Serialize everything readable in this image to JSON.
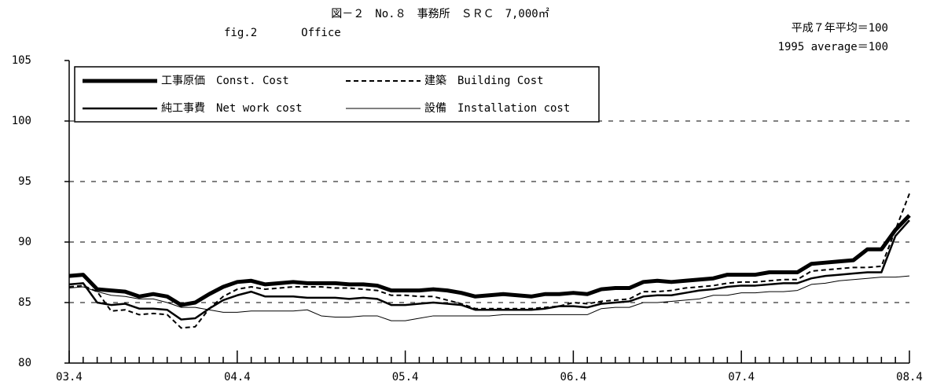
{
  "chart_data": {
    "type": "line",
    "title": "図－２　No.８　事務所　ＳＲＣ　7,000㎡",
    "subtitle": "fig.2　　　　Office",
    "annotations": [
      "平成７年平均＝100",
      "1995 average＝100"
    ],
    "categories": [
      "03.4",
      null,
      null,
      null,
      null,
      null,
      null,
      null,
      null,
      null,
      null,
      null,
      "04.4",
      null,
      null,
      null,
      null,
      null,
      null,
      null,
      null,
      null,
      null,
      null,
      "05.4",
      null,
      null,
      null,
      null,
      null,
      null,
      null,
      null,
      null,
      null,
      null,
      "06.4",
      null,
      null,
      null,
      null,
      null,
      null,
      null,
      null,
      null,
      null,
      null,
      "07.4",
      null,
      null,
      null,
      null,
      null,
      null,
      null,
      null,
      null,
      null,
      null,
      "08.4"
    ],
    "ylim": [
      80,
      105
    ],
    "yticks": [
      80,
      85,
      90,
      95,
      100,
      105
    ],
    "grid": true,
    "series": [
      {
        "name": "工事原価　Const. Cost",
        "color": "#000000",
        "line_width": 5,
        "dashed": false,
        "values": [
          87.2,
          87.3,
          86.1,
          86.0,
          85.9,
          85.5,
          85.7,
          85.5,
          84.8,
          85.0,
          85.7,
          86.3,
          86.7,
          86.8,
          86.5,
          86.6,
          86.7,
          86.6,
          86.6,
          86.6,
          86.5,
          86.5,
          86.4,
          86.0,
          86.0,
          86.0,
          86.1,
          86.0,
          85.8,
          85.5,
          85.6,
          85.7,
          85.6,
          85.5,
          85.7,
          85.7,
          85.8,
          85.7,
          86.1,
          86.2,
          86.2,
          86.7,
          86.8,
          86.7,
          86.8,
          86.9,
          87.0,
          87.3,
          87.3,
          87.3,
          87.5,
          87.5,
          87.5,
          88.2,
          88.3,
          88.4,
          88.5,
          89.4,
          89.4,
          91.0,
          92.2
        ]
      },
      {
        "name": "建築　Building Cost",
        "color": "#000000",
        "line_width": 2,
        "dashed": true,
        "values": [
          86.3,
          86.4,
          85.9,
          84.3,
          84.4,
          84.0,
          84.1,
          84.0,
          82.9,
          83.0,
          84.5,
          85.5,
          86.1,
          86.3,
          86.1,
          86.2,
          86.3,
          86.3,
          86.3,
          86.2,
          86.2,
          86.1,
          86.0,
          85.6,
          85.6,
          85.5,
          85.5,
          85.2,
          84.9,
          84.5,
          84.5,
          84.5,
          84.5,
          84.5,
          84.6,
          84.7,
          85.0,
          84.9,
          85.1,
          85.2,
          85.3,
          85.9,
          85.9,
          86.0,
          86.2,
          86.3,
          86.4,
          86.6,
          86.7,
          86.7,
          86.8,
          86.9,
          86.9,
          87.6,
          87.7,
          87.8,
          87.9,
          87.9,
          88.0,
          91.0,
          94.0
        ]
      },
      {
        "name": "純工事費　Net work cost",
        "color": "#000000",
        "line_width": 2.5,
        "dashed": false,
        "values": [
          86.5,
          86.6,
          85.0,
          84.8,
          84.9,
          84.5,
          84.5,
          84.4,
          83.6,
          83.7,
          84.5,
          85.2,
          85.6,
          85.9,
          85.5,
          85.5,
          85.5,
          85.4,
          85.4,
          85.4,
          85.3,
          85.4,
          85.3,
          84.8,
          84.8,
          84.9,
          85.0,
          84.9,
          84.8,
          84.4,
          84.4,
          84.4,
          84.4,
          84.4,
          84.5,
          84.7,
          84.7,
          84.6,
          84.9,
          85.0,
          85.1,
          85.5,
          85.6,
          85.6,
          85.8,
          86.0,
          86.1,
          86.3,
          86.4,
          86.4,
          86.5,
          86.6,
          86.6,
          87.0,
          87.2,
          87.3,
          87.4,
          87.5,
          87.5,
          90.5,
          91.8
        ]
      },
      {
        "name": "設備　Installation cost",
        "color": "#000000",
        "line_width": 1,
        "dashed": false,
        "values": [
          86.2,
          86.3,
          85.9,
          85.6,
          85.5,
          85.3,
          85.3,
          85.0,
          84.6,
          84.6,
          84.4,
          84.2,
          84.2,
          84.3,
          84.3,
          84.3,
          84.3,
          84.4,
          83.9,
          83.8,
          83.8,
          83.9,
          83.9,
          83.5,
          83.5,
          83.7,
          83.9,
          83.9,
          83.9,
          83.9,
          83.9,
          84.0,
          84.0,
          84.0,
          84.0,
          84.0,
          84.0,
          84.0,
          84.5,
          84.6,
          84.6,
          85.0,
          85.0,
          85.1,
          85.2,
          85.3,
          85.6,
          85.6,
          85.8,
          85.8,
          85.9,
          85.9,
          86.0,
          86.5,
          86.6,
          86.8,
          86.9,
          87.0,
          87.1,
          87.1,
          87.2
        ]
      }
    ]
  }
}
